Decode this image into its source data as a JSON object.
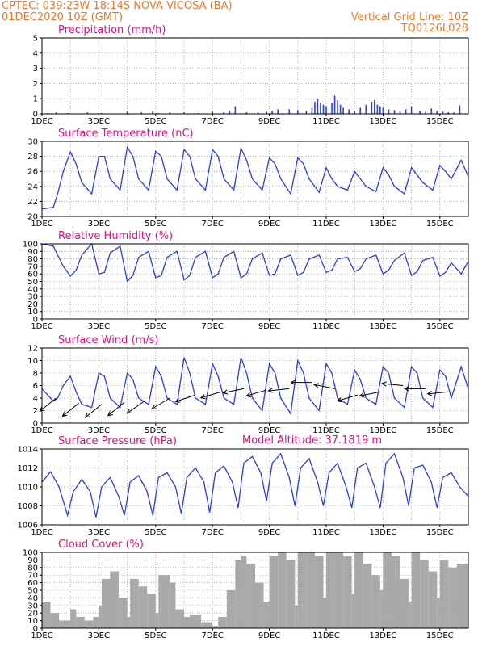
{
  "header": {
    "line1_left": "CPTEC:    039:23W-18:14S    NOVA VICOSA (BA)",
    "line2_left": "01DEC2020  10Z  (GMT)",
    "line1_right": "Vertical Grid Line: 10Z",
    "line2_right": "TQ0126L028",
    "extra_label": "Model Altitude: 37.1819  m"
  },
  "colors": {
    "series": "#2a3fd8",
    "cloud": "#a9a9a9",
    "header": "#e8782a",
    "title": "#e0117f"
  },
  "chart_data": [
    {
      "id": "precip",
      "type": "bar",
      "title": "Precipitation  (mm/h)",
      "ylim": [
        0,
        5
      ],
      "yticks": [
        0,
        1,
        2,
        3,
        4,
        5
      ],
      "xlim_days": [
        1,
        16
      ],
      "xticks": [
        "1DEC",
        "3DEC",
        "5DEC",
        "7DEC",
        "9DEC",
        "11DEC",
        "13DEC",
        "15DEC"
      ],
      "x": [
        1.2,
        1.5,
        1.9,
        2.6,
        3.1,
        4.0,
        4.5,
        4.9,
        5.1,
        5.5,
        6.0,
        6.5,
        7.0,
        7.4,
        7.6,
        7.8,
        8.2,
        8.6,
        8.9,
        9.1,
        9.3,
        9.7,
        10.0,
        10.3,
        10.5,
        10.6,
        10.7,
        10.8,
        10.9,
        11.0,
        11.2,
        11.3,
        11.4,
        11.5,
        11.6,
        11.8,
        12.0,
        12.2,
        12.4,
        12.6,
        12.7,
        12.8,
        12.9,
        13.0,
        13.2,
        13.4,
        13.6,
        13.8,
        14.0,
        14.3,
        14.5,
        14.7,
        14.9,
        15.1,
        15.3,
        15.5,
        15.7
      ],
      "values": [
        0.05,
        0.1,
        0.05,
        0.1,
        0.05,
        0.15,
        0.1,
        0.2,
        0.05,
        0.1,
        0.1,
        0.05,
        0.15,
        0.1,
        0.2,
        0.5,
        0.1,
        0.1,
        0.15,
        0.2,
        0.3,
        0.3,
        0.25,
        0.2,
        0.4,
        0.8,
        1.0,
        0.7,
        0.6,
        0.5,
        0.7,
        1.2,
        0.9,
        0.6,
        0.4,
        0.3,
        0.2,
        0.4,
        0.6,
        0.8,
        0.9,
        0.6,
        0.5,
        0.4,
        0.3,
        0.25,
        0.2,
        0.3,
        0.5,
        0.2,
        0.15,
        0.35,
        0.2,
        0.15,
        0.1,
        0.1,
        0.55
      ]
    },
    {
      "id": "temp",
      "type": "line",
      "title": "Surface Temperature  (nC)",
      "ylim": [
        20,
        30
      ],
      "yticks": [
        20,
        22,
        24,
        26,
        28,
        30
      ],
      "xlim_days": [
        1,
        16
      ],
      "xticks": [
        "1DEC",
        "3DEC",
        "5DEC",
        "7DEC",
        "9DEC",
        "11DEC",
        "13DEC",
        "15DEC"
      ],
      "x": [
        1.0,
        1.4,
        1.55,
        1.75,
        2.0,
        2.2,
        2.4,
        2.75,
        3.0,
        3.2,
        3.4,
        3.75,
        4.0,
        4.2,
        4.4,
        4.75,
        5.0,
        5.2,
        5.4,
        5.75,
        6.0,
        6.2,
        6.4,
        6.75,
        7.0,
        7.2,
        7.4,
        7.75,
        8.0,
        8.2,
        8.4,
        8.75,
        9.0,
        9.2,
        9.4,
        9.75,
        10.0,
        10.2,
        10.4,
        10.75,
        11.0,
        11.2,
        11.4,
        11.75,
        12.0,
        12.2,
        12.4,
        12.75,
        13.0,
        13.2,
        13.4,
        13.75,
        14.0,
        14.2,
        14.4,
        14.75,
        15.0,
        15.2,
        15.4,
        15.75,
        16.0
      ],
      "values": [
        21.0,
        21.2,
        23.0,
        26.0,
        28.6,
        27.0,
        24.5,
        23.0,
        28.0,
        28.0,
        25.0,
        23.5,
        29.2,
        28.0,
        25.0,
        23.5,
        28.7,
        28.0,
        25.0,
        23.5,
        28.9,
        28.0,
        25.0,
        23.5,
        28.9,
        28.0,
        25.0,
        23.5,
        29.1,
        27.5,
        25.0,
        23.5,
        27.8,
        27.0,
        25.0,
        23.0,
        27.8,
        27.0,
        25.0,
        23.2,
        26.5,
        25.0,
        24.0,
        23.5,
        26.0,
        25.0,
        24.0,
        23.3,
        26.5,
        25.5,
        24.0,
        23.0,
        26.5,
        25.5,
        24.5,
        23.5,
        26.8,
        26.0,
        25.0,
        27.5,
        25.3
      ]
    },
    {
      "id": "rh",
      "type": "line",
      "title": "Relative Humidity  (%)",
      "ylim": [
        0,
        100
      ],
      "yticks": [
        0,
        10,
        20,
        30,
        40,
        50,
        60,
        70,
        80,
        90,
        100
      ],
      "xlim_days": [
        1,
        16
      ],
      "xticks": [
        "1DEC",
        "3DEC",
        "5DEC",
        "7DEC",
        "9DEC",
        "11DEC",
        "13DEC",
        "15DEC"
      ],
      "x": [
        1.0,
        1.4,
        1.55,
        1.75,
        2.0,
        2.2,
        2.4,
        2.75,
        3.0,
        3.2,
        3.4,
        3.75,
        4.0,
        4.2,
        4.4,
        4.75,
        5.0,
        5.2,
        5.4,
        5.75,
        6.0,
        6.2,
        6.4,
        6.75,
        7.0,
        7.2,
        7.4,
        7.75,
        8.0,
        8.2,
        8.4,
        8.75,
        9.0,
        9.2,
        9.4,
        9.75,
        10.0,
        10.2,
        10.4,
        10.75,
        11.0,
        11.2,
        11.4,
        11.75,
        12.0,
        12.2,
        12.4,
        12.75,
        13.0,
        13.2,
        13.4,
        13.75,
        14.0,
        14.2,
        14.4,
        14.75,
        15.0,
        15.2,
        15.4,
        15.75,
        16.0
      ],
      "values": [
        100,
        97,
        85,
        70,
        57,
        65,
        85,
        100,
        60,
        62,
        88,
        97,
        50,
        58,
        82,
        90,
        55,
        58,
        82,
        90,
        52,
        58,
        82,
        90,
        55,
        60,
        82,
        90,
        55,
        60,
        80,
        88,
        58,
        60,
        80,
        85,
        58,
        62,
        80,
        85,
        62,
        65,
        80,
        82,
        63,
        67,
        80,
        85,
        60,
        65,
        78,
        88,
        58,
        63,
        78,
        82,
        57,
        62,
        75,
        60,
        77
      ]
    },
    {
      "id": "wind",
      "type": "line",
      "title": "Surface Wind  (m/s)",
      "ylim": [
        0,
        12
      ],
      "yticks": [
        0,
        2,
        4,
        6,
        8,
        10,
        12
      ],
      "xlim_days": [
        1,
        16
      ],
      "xticks": [
        "1DEC",
        "3DEC",
        "5DEC",
        "7DEC",
        "9DEC",
        "11DEC",
        "13DEC",
        "15DEC"
      ],
      "x": [
        1.0,
        1.4,
        1.55,
        1.75,
        2.0,
        2.2,
        2.4,
        2.75,
        3.0,
        3.2,
        3.4,
        3.75,
        4.0,
        4.2,
        4.4,
        4.75,
        5.0,
        5.2,
        5.4,
        5.75,
        6.0,
        6.2,
        6.4,
        6.75,
        7.0,
        7.2,
        7.4,
        7.75,
        8.0,
        8.2,
        8.4,
        8.75,
        9.0,
        9.2,
        9.4,
        9.75,
        10.0,
        10.2,
        10.4,
        10.75,
        11.0,
        11.2,
        11.4,
        11.75,
        12.0,
        12.2,
        12.4,
        12.75,
        13.0,
        13.2,
        13.4,
        13.75,
        14.0,
        14.2,
        14.4,
        14.75,
        15.0,
        15.2,
        15.4,
        15.75,
        16.0
      ],
      "values": [
        5.5,
        3.5,
        4.0,
        6.0,
        7.5,
        5.0,
        3.0,
        2.5,
        8.0,
        7.5,
        4.0,
        2.5,
        8.0,
        7.0,
        4.0,
        3.0,
        9.0,
        7.5,
        4.0,
        3.0,
        10.5,
        8.0,
        4.0,
        3.0,
        9.5,
        7.5,
        4.0,
        3.0,
        10.5,
        8.0,
        4.0,
        2.0,
        9.5,
        8.0,
        4.0,
        1.5,
        10.0,
        8.0,
        4.0,
        2.0,
        9.5,
        8.0,
        4.0,
        3.0,
        8.5,
        7.0,
        4.0,
        3.0,
        9.0,
        8.0,
        4.0,
        2.5,
        9.0,
        8.0,
        4.0,
        2.5,
        8.5,
        7.5,
        4.0,
        9.0,
        5.5
      ],
      "vector_x": [
        1.5,
        2.3,
        3.1,
        3.9,
        4.6,
        5.5,
        6.4,
        7.3,
        8.1,
        8.9,
        9.7,
        10.5,
        11.3,
        12.1,
        12.9,
        13.7,
        14.5,
        15.3
      ],
      "vector_y": [
        4.0,
        3.2,
        3.0,
        3.3,
        3.5,
        4.0,
        4.5,
        5.0,
        5.5,
        5.3,
        5.5,
        6.5,
        5.5,
        4.5,
        5.0,
        6.0,
        5.5,
        5.0
      ],
      "vector_u": [
        1.0,
        1.0,
        1.0,
        1.0,
        1.0,
        1.0,
        0.9,
        1.0,
        1.0,
        1.0,
        1.0,
        1.0,
        1.0,
        1.0,
        1.0,
        1.0,
        1.0,
        1.0
      ],
      "vector_v": [
        0.8,
        0.8,
        0.8,
        0.8,
        0.7,
        0.6,
        0.3,
        0.3,
        0.2,
        0.3,
        0.1,
        0.0,
        -0.2,
        0.3,
        0.2,
        -0.1,
        0.0,
        0.1
      ]
    },
    {
      "id": "pres",
      "type": "line",
      "title": "Surface Pressure  (hPa)",
      "ylim": [
        1006,
        1014
      ],
      "yticks": [
        1006,
        1008,
        1010,
        1012,
        1014
      ],
      "xlim_days": [
        1,
        16
      ],
      "xticks": [
        "1DEC",
        "3DEC",
        "5DEC",
        "7DEC",
        "9DEC",
        "11DEC",
        "13DEC",
        "15DEC"
      ],
      "x": [
        1.0,
        1.3,
        1.6,
        1.9,
        2.1,
        2.4,
        2.7,
        2.9,
        3.1,
        3.4,
        3.7,
        3.9,
        4.1,
        4.4,
        4.7,
        4.9,
        5.1,
        5.4,
        5.7,
        5.9,
        6.1,
        6.4,
        6.7,
        6.9,
        7.1,
        7.4,
        7.7,
        7.9,
        8.1,
        8.4,
        8.7,
        8.9,
        9.1,
        9.4,
        9.7,
        9.9,
        10.1,
        10.4,
        10.7,
        10.9,
        11.1,
        11.4,
        11.7,
        11.9,
        12.1,
        12.4,
        12.7,
        12.9,
        13.1,
        13.4,
        13.7,
        13.9,
        14.1,
        14.4,
        14.7,
        14.9,
        15.1,
        15.4,
        15.7,
        16.0
      ],
      "values": [
        1010.5,
        1011.6,
        1010.0,
        1007.0,
        1009.5,
        1010.8,
        1009.5,
        1006.8,
        1010.0,
        1011.0,
        1009.0,
        1007.0,
        1010.5,
        1011.2,
        1009.5,
        1007.0,
        1011.0,
        1011.5,
        1010.0,
        1007.2,
        1011.0,
        1012.0,
        1010.5,
        1007.3,
        1011.5,
        1012.2,
        1010.5,
        1007.8,
        1012.5,
        1013.2,
        1011.5,
        1008.5,
        1012.5,
        1013.5,
        1011.0,
        1008.0,
        1012.0,
        1013.0,
        1010.5,
        1008.0,
        1011.5,
        1012.5,
        1010.0,
        1007.8,
        1012.0,
        1012.5,
        1010.0,
        1007.8,
        1012.5,
        1013.5,
        1011.0,
        1008.0,
        1012.0,
        1012.3,
        1010.5,
        1007.8,
        1011.0,
        1011.5,
        1010.0,
        1009.0
      ]
    },
    {
      "id": "cloud",
      "type": "area",
      "title": "Cloud Cover  (%)",
      "ylim": [
        0,
        100
      ],
      "yticks": [
        0,
        10,
        20,
        30,
        40,
        50,
        60,
        70,
        80,
        90,
        100
      ],
      "xlim_days": [
        1,
        16
      ],
      "xticks": [
        "1DEC",
        "3DEC",
        "5DEC",
        "7DEC",
        "9DEC",
        "11DEC",
        "13DEC",
        "15DEC"
      ],
      "x": [
        1.0,
        1.3,
        1.6,
        2.0,
        2.2,
        2.5,
        2.8,
        3.0,
        3.1,
        3.4,
        3.7,
        4.0,
        4.1,
        4.4,
        4.7,
        5.0,
        5.1,
        5.5,
        5.7,
        6.0,
        6.2,
        6.6,
        7.0,
        7.2,
        7.5,
        7.8,
        8.0,
        8.2,
        8.5,
        8.8,
        9.0,
        9.3,
        9.6,
        9.9,
        10.0,
        10.3,
        10.6,
        10.9,
        11.0,
        11.3,
        11.6,
        11.9,
        12.0,
        12.3,
        12.6,
        12.9,
        13.0,
        13.3,
        13.6,
        13.9,
        14.0,
        14.3,
        14.6,
        14.9,
        15.0,
        15.3,
        15.6,
        16.0
      ],
      "values": [
        35,
        20,
        10,
        25,
        15,
        10,
        15,
        30,
        65,
        75,
        40,
        15,
        65,
        55,
        45,
        20,
        70,
        60,
        25,
        15,
        18,
        8,
        3,
        15,
        50,
        90,
        95,
        85,
        60,
        35,
        95,
        100,
        90,
        30,
        100,
        100,
        95,
        40,
        100,
        100,
        95,
        45,
        100,
        85,
        70,
        50,
        100,
        95,
        65,
        35,
        100,
        90,
        75,
        40,
        90,
        80,
        85,
        60
      ]
    }
  ]
}
